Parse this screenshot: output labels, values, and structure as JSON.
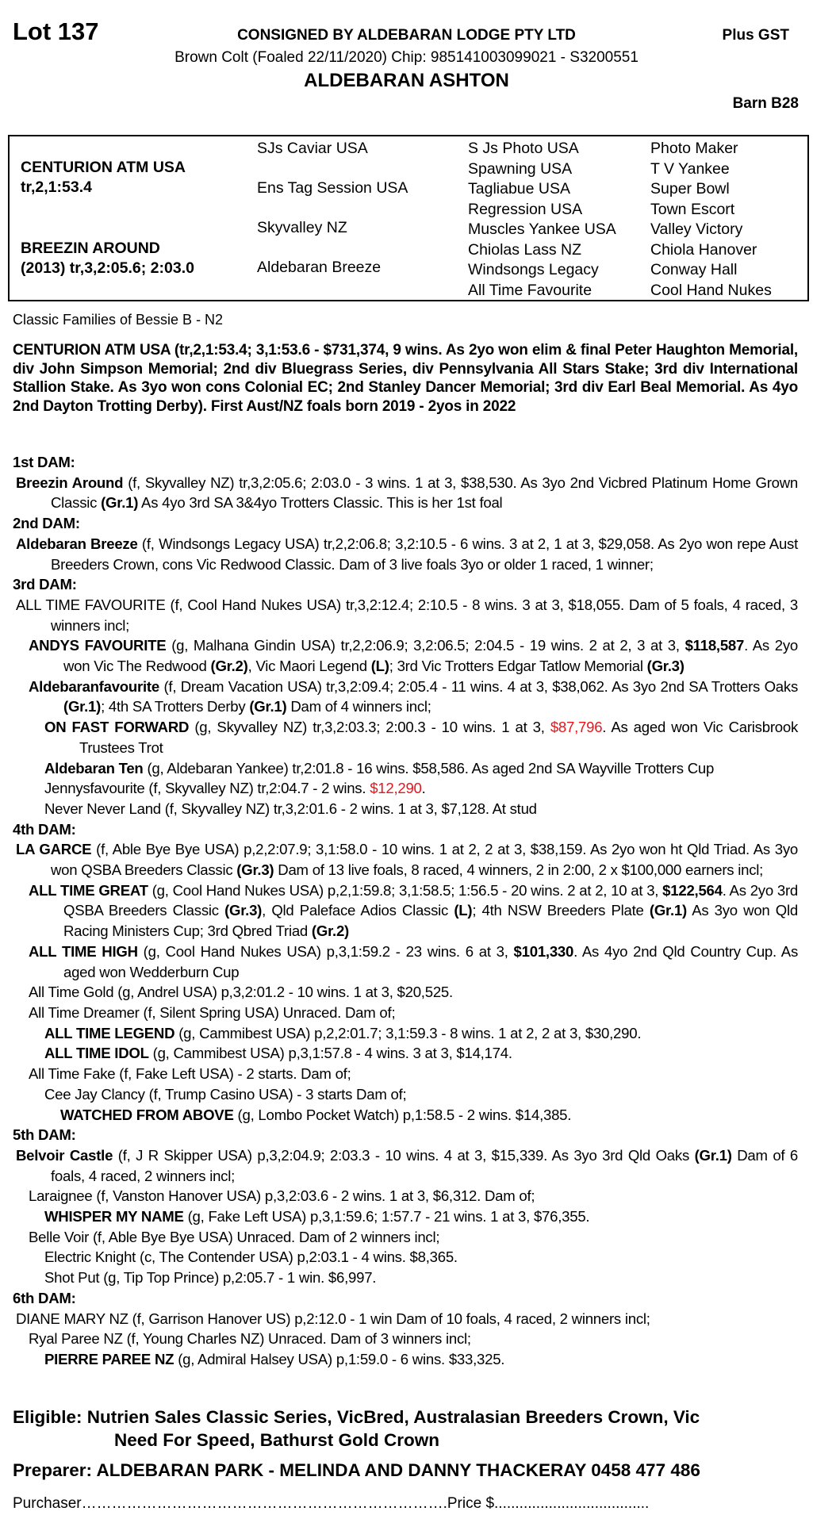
{
  "header": {
    "lot": "Lot 137",
    "consigned": "CONSIGNED BY ALDEBARAN LODGE PTY LTD",
    "gst": "Plus GST",
    "description": "Brown Colt (Foaled 22/11/2020) Chip: 985141003099021 - S3200551",
    "name": "ALDEBARAN ASHTON",
    "barn": "Barn B28"
  },
  "pedigree": {
    "sire": "CENTURION ATM USA",
    "sire_rec": "tr,2,1:53.4",
    "dam": "BREEZIN AROUND",
    "dam_rec": "(2013) tr,3,2:05.6; 2:03.0",
    "gen2": [
      "SJs Caviar USA",
      "Ens Tag Session USA",
      "Skyvalley NZ",
      "Aldebaran Breeze"
    ],
    "gen3": [
      "S Js Photo USA",
      "Spawning USA",
      "Tagliabue USA",
      "Regression USA",
      "Muscles Yankee USA",
      "Chiolas Lass NZ",
      "Windsongs Legacy",
      "All Time Favourite"
    ],
    "gen4": [
      "Photo Maker",
      "T V Yankee",
      "Super Bowl",
      "Town Escort",
      "Valley Victory",
      "Chiola Hanover",
      "Conway Hall",
      "Cool Hand Nukes"
    ]
  },
  "family": "Classic Families of Bessie B - N2",
  "sire_notes": "CENTURION ATM USA (tr,2,1:53.4; 3,1:53.6 - $731,374, 9 wins. As 2yo won elim & final Peter Haughton Memorial, div John Simpson Memorial; 2nd div Bluegrass Series, div Pennsylvania All Stars Stake; 3rd div International Stallion Stake. As 3yo won cons Colonial EC; 2nd Stanley Dancer Memorial; 3rd div Earl Beal Memorial. As 4yo 2nd Dayton Trotting Derby). First Aust/NZ foals born 2019 - 2yos in 2022",
  "colors": {
    "highlight": "#e8161c"
  },
  "sections": [
    {
      "heading": "1st DAM:",
      "entries": [
        {
          "level": 0,
          "segs": [
            [
              "Breezin Around",
              "b"
            ],
            [
              " (f, Skyvalley NZ) tr,3,2:05.6; 2:03.0 - 3 wins. 1 at 3, $38,530. As 3yo 2nd Vicbred Platinum Home Grown Classic ",
              ""
            ],
            [
              "(Gr.1)",
              "b"
            ],
            [
              " As 4yo 3rd SA 3&4yo Trotters Classic. This is her 1st foal",
              ""
            ]
          ]
        }
      ]
    },
    {
      "heading": "2nd DAM:",
      "entries": [
        {
          "level": 0,
          "segs": [
            [
              "Aldebaran Breeze",
              "b"
            ],
            [
              " (f, Windsongs Legacy USA) tr,2,2:06.8; 3,2:10.5 - 6 wins. 3 at 2, 1 at 3, $29,058. As 2yo won repe Aust Breeders Crown, cons Vic Redwood Classic. Dam of 3 live foals 3yo or older 1 raced, 1 winner;",
              ""
            ]
          ]
        }
      ]
    },
    {
      "heading": "3rd DAM:",
      "entries": [
        {
          "level": 0,
          "segs": [
            [
              "ALL TIME FAVOURITE (f, Cool Hand Nukes USA) tr,3,2:12.4; 2:10.5 - 8 wins. 3 at 3, $18,055. Dam of 5 foals, 4 raced, 3 winners incl;",
              ""
            ]
          ]
        },
        {
          "level": 1,
          "segs": [
            [
              "ANDYS FAVOURITE",
              "b"
            ],
            [
              " (g, Malhana Gindin USA) tr,2,2:06.9; 3,2:06.5; 2:04.5 - 19 wins. 2 at 2, 3 at 3, ",
              ""
            ],
            [
              "$118,587",
              "b"
            ],
            [
              ". As 2yo won Vic The Redwood ",
              ""
            ],
            [
              "(Gr.2)",
              "b"
            ],
            [
              ", Vic Maori Legend ",
              ""
            ],
            [
              "(L)",
              "b"
            ],
            [
              "; 3rd Vic Trotters Edgar Tatlow Memorial ",
              ""
            ],
            [
              "(Gr.3)",
              "b"
            ]
          ]
        },
        {
          "level": 1,
          "segs": [
            [
              "Aldebaranfavourite",
              "b"
            ],
            [
              " (f, Dream Vacation USA) tr,3,2:09.4; 2:05.4 - 11 wins. 4 at 3, $38,062. As 3yo 2nd SA Trotters Oaks ",
              ""
            ],
            [
              "(Gr.1)",
              "b"
            ],
            [
              "; 4th SA Trotters Derby ",
              ""
            ],
            [
              "(Gr.1)",
              "b"
            ],
            [
              " Dam of 4 winners incl;",
              ""
            ]
          ]
        },
        {
          "level": 2,
          "segs": [
            [
              "ON FAST FORWARD",
              "b"
            ],
            [
              " (g, Skyvalley NZ) tr,3,2:03.3; 2:00.3 - 10 wins. 1 at 3, ",
              ""
            ],
            [
              "$87,796",
              "r"
            ],
            [
              ". As aged won Vic Carisbrook Trustees Trot",
              ""
            ]
          ]
        },
        {
          "level": 2,
          "segs": [
            [
              "Aldebaran Ten",
              "b"
            ],
            [
              " (g, Aldebaran Yankee) tr,2:01.8 - 16 wins. $58,586. As aged 2nd SA Wayville Trotters Cup",
              ""
            ]
          ]
        },
        {
          "level": 2,
          "segs": [
            [
              "Jennysfavourite (f, Skyvalley NZ) tr,2:04.7 - 2 wins. ",
              ""
            ],
            [
              "$12,290",
              "r"
            ],
            [
              ".",
              ""
            ]
          ]
        },
        {
          "level": 2,
          "segs": [
            [
              "Never Never Land (f, Skyvalley NZ) tr,3,2:01.6 - 2 wins. 1 at 3, $7,128. At stud",
              ""
            ]
          ]
        }
      ]
    },
    {
      "heading": "4th DAM:",
      "entries": [
        {
          "level": 0,
          "segs": [
            [
              "LA GARCE",
              "b"
            ],
            [
              " (f, Able Bye Bye USA) p,2,2:07.9; 3,1:58.0 - 10 wins. 1 at 2, 2 at 3, $38,159. As 2yo won ht Qld Triad. As 3yo won QSBA Breeders Classic ",
              ""
            ],
            [
              "(Gr.3)",
              "b"
            ],
            [
              " Dam of 13 live foals, 8 raced, 4 winners, 2 in 2:00, 2 x $100,000 earners incl;",
              ""
            ]
          ]
        },
        {
          "level": 1,
          "segs": [
            [
              "ALL TIME GREAT",
              "b"
            ],
            [
              " (g, Cool Hand Nukes USA) p,2,1:59.8; 3,1:58.5; 1:56.5 - 20 wins. 2 at 2, 10 at 3, ",
              ""
            ],
            [
              "$122,564",
              "b"
            ],
            [
              ". As 2yo 3rd QSBA Breeders Classic ",
              ""
            ],
            [
              "(Gr.3)",
              "b"
            ],
            [
              ", Qld Paleface Adios Classic ",
              ""
            ],
            [
              "(L)",
              "b"
            ],
            [
              "; 4th NSW Breeders Plate ",
              ""
            ],
            [
              "(Gr.1)",
              "b"
            ],
            [
              " As 3yo won Qld Racing Ministers Cup; 3rd Qbred Triad ",
              ""
            ],
            [
              "(Gr.2)",
              "b"
            ]
          ]
        },
        {
          "level": 1,
          "segs": [
            [
              "ALL TIME HIGH",
              "b"
            ],
            [
              " (g, Cool Hand Nukes USA) p,3,1:59.2 - 23 wins. 6 at 3, ",
              ""
            ],
            [
              "$101,330",
              "b"
            ],
            [
              ". As 4yo 2nd Qld Country Cup. As aged won Wedderburn Cup",
              ""
            ]
          ]
        },
        {
          "level": 1,
          "segs": [
            [
              "All Time Gold (g, Andrel USA) p,3,2:01.2 - 10 wins. 1 at 3, $20,525.",
              ""
            ]
          ]
        },
        {
          "level": 1,
          "segs": [
            [
              "All Time Dreamer (f, Silent Spring USA) Unraced. Dam of;",
              ""
            ]
          ]
        },
        {
          "level": 2,
          "segs": [
            [
              "ALL TIME LEGEND",
              "b"
            ],
            [
              " (g, Cammibest USA) p,2,2:01.7; 3,1:59.3 - 8 wins. 1 at 2, 2 at 3, $30,290.",
              ""
            ]
          ]
        },
        {
          "level": 2,
          "segs": [
            [
              "ALL TIME IDOL",
              "b"
            ],
            [
              " (g, Cammibest USA) p,3,1:57.8 - 4 wins. 3 at 3, $14,174.",
              ""
            ]
          ]
        },
        {
          "level": 1,
          "segs": [
            [
              "All Time Fake (f, Fake Left USA) - 2 starts. Dam of;",
              ""
            ]
          ]
        },
        {
          "level": 2,
          "segs": [
            [
              "Cee Jay Clancy (f, Trump Casino USA) - 3 starts Dam of;",
              ""
            ]
          ]
        },
        {
          "level": 3,
          "segs": [
            [
              "WATCHED FROM ABOVE",
              "b"
            ],
            [
              " (g, Lombo Pocket Watch) p,1:58.5 - 2 wins. $14,385.",
              ""
            ]
          ]
        }
      ]
    },
    {
      "heading": "5th DAM:",
      "entries": [
        {
          "level": 0,
          "segs": [
            [
              "Belvoir Castle",
              "b"
            ],
            [
              " (f, J R Skipper USA) p,3,2:04.9; 2:03.3 - 10 wins. 4 at 3, $15,339. As 3yo 3rd Qld Oaks ",
              ""
            ],
            [
              "(Gr.1)",
              "b"
            ],
            [
              " Dam of 6 foals, 4 raced, 2 winners incl;",
              ""
            ]
          ]
        },
        {
          "level": 1,
          "segs": [
            [
              "Laraignee (f, Vanston Hanover USA) p,3,2:03.6 - 2 wins. 1 at 3, $6,312. Dam of;",
              ""
            ]
          ]
        },
        {
          "level": 2,
          "segs": [
            [
              "WHISPER MY NAME",
              "b"
            ],
            [
              " (g, Fake Left USA) p,3,1:59.6; 1:57.7 - 21 wins. 1 at 3, $76,355.",
              ""
            ]
          ]
        },
        {
          "level": 1,
          "segs": [
            [
              "Belle Voir (f, Able Bye Bye USA) Unraced. Dam of 2 winners incl;",
              ""
            ]
          ]
        },
        {
          "level": 2,
          "segs": [
            [
              "Electric Knight (c, The Contender USA) p,2:03.1 - 4 wins. $8,365.",
              ""
            ]
          ]
        },
        {
          "level": 2,
          "segs": [
            [
              "Shot Put (g, Tip Top Prince) p,2:05.7 - 1 win. $6,997.",
              ""
            ]
          ]
        }
      ]
    },
    {
      "heading": "6th DAM:",
      "entries": [
        {
          "level": 0,
          "segs": [
            [
              "DIANE MARY NZ (f, Garrison Hanover US) p,2:12.0 - 1 win Dam of 10 foals, 4 raced, 2 winners incl;",
              ""
            ]
          ]
        },
        {
          "level": 1,
          "segs": [
            [
              "Ryal Paree NZ (f, Young Charles NZ) Unraced. Dam of 3 winners incl;",
              ""
            ]
          ]
        },
        {
          "level": 2,
          "segs": [
            [
              "PIERRE PAREE NZ",
              "b"
            ],
            [
              " (g, Admiral Halsey USA) p,1:59.0 - 6 wins. $33,325.",
              ""
            ]
          ]
        }
      ]
    }
  ],
  "footer": {
    "eligible_1": "Eligible: Nutrien Sales Classic Series, VicBred, Australasian Breeders Crown, Vic",
    "eligible_2": "Need For Speed, Bathurst Gold Crown",
    "preparer": "Preparer: ALDEBARAN PARK - MELINDA AND DANNY THACKERAY 0458 477 486",
    "purchaser": "Purchaser……………………………………………………………….Price $....................................."
  }
}
